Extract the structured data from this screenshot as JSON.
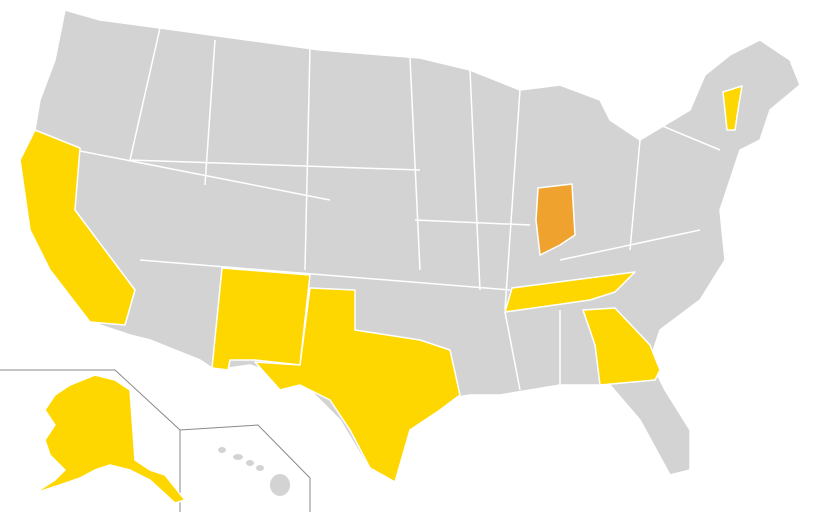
{
  "map": {
    "colors": {
      "default": "#d3d3d3",
      "highlight": "#ffd700",
      "highlight_strong": "#f0a22e",
      "border": "#ffffff"
    },
    "highlighted_states": [
      {
        "state": "California",
        "level": "highlight"
      },
      {
        "state": "New Mexico",
        "level": "highlight"
      },
      {
        "state": "Texas",
        "level": "highlight"
      },
      {
        "state": "Tennessee",
        "level": "highlight"
      },
      {
        "state": "Georgia",
        "level": "highlight"
      },
      {
        "state": "Vermont",
        "level": "highlight"
      },
      {
        "state": "Alaska",
        "level": "highlight"
      },
      {
        "state": "Indiana",
        "level": "highlight_strong"
      }
    ]
  }
}
